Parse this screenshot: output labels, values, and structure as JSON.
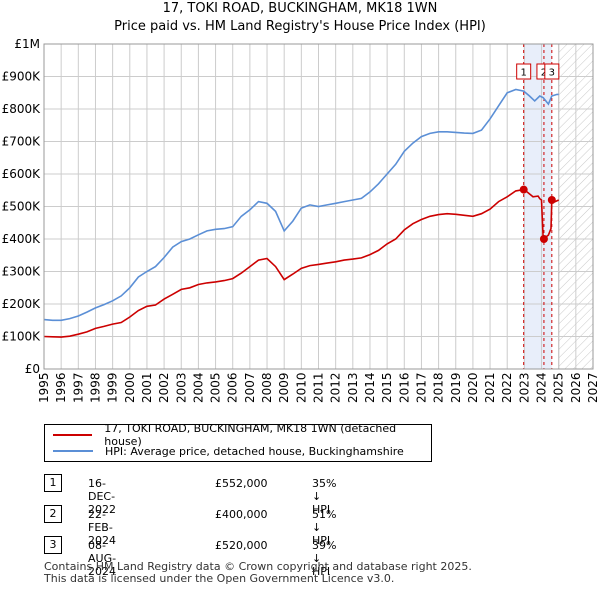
{
  "title": "17, TOKI ROAD, BUCKINGHAM, MK18 1WN",
  "subtitle": "Price paid vs. HM Land Registry's House Price Index (HPI)",
  "colors": {
    "red": "#cc0000",
    "blue": "#5b8fd6",
    "grid": "#cccccc"
  },
  "chart_data": {
    "type": "line",
    "xlim": [
      1995,
      2027
    ],
    "ylim": [
      0,
      1000000
    ],
    "x_ticks": [
      1995,
      1996,
      1997,
      1998,
      1999,
      2000,
      2001,
      2002,
      2003,
      2004,
      2005,
      2006,
      2007,
      2008,
      2009,
      2010,
      2011,
      2012,
      2013,
      2014,
      2015,
      2016,
      2017,
      2018,
      2019,
      2020,
      2021,
      2022,
      2023,
      2024,
      2025,
      2026,
      2027
    ],
    "y_ticks": [
      {
        "value": 0,
        "label": "£0"
      },
      {
        "value": 100000,
        "label": "£100K"
      },
      {
        "value": 200000,
        "label": "£200K"
      },
      {
        "value": 300000,
        "label": "£300K"
      },
      {
        "value": 400000,
        "label": "£400K"
      },
      {
        "value": 500000,
        "label": "£500K"
      },
      {
        "value": 600000,
        "label": "£600K"
      },
      {
        "value": 700000,
        "label": "£700K"
      },
      {
        "value": 800000,
        "label": "£800K"
      },
      {
        "value": 900000,
        "label": "£900K"
      },
      {
        "value": 1000000,
        "label": "£1M"
      }
    ],
    "highlight_range": [
      2022.96,
      2024.6
    ],
    "future_from": 2025.0,
    "series": [
      {
        "name": "17, TOKI ROAD, BUCKINGHAM, MK18 1WN (detached house)",
        "color": "#cc0000",
        "points": [
          [
            1995.0,
            100000
          ],
          [
            1995.5,
            99000
          ],
          [
            1996.0,
            98000
          ],
          [
            1996.5,
            101000
          ],
          [
            1997.0,
            107000
          ],
          [
            1997.5,
            114000
          ],
          [
            1998.0,
            125000
          ],
          [
            1998.5,
            131000
          ],
          [
            1999.0,
            138000
          ],
          [
            1999.5,
            143000
          ],
          [
            2000.0,
            160000
          ],
          [
            2000.5,
            180000
          ],
          [
            2001.0,
            193000
          ],
          [
            2001.5,
            197000
          ],
          [
            2002.0,
            215000
          ],
          [
            2002.5,
            230000
          ],
          [
            2003.0,
            245000
          ],
          [
            2003.5,
            250000
          ],
          [
            2004.0,
            260000
          ],
          [
            2004.5,
            265000
          ],
          [
            2005.0,
            268000
          ],
          [
            2005.5,
            272000
          ],
          [
            2006.0,
            278000
          ],
          [
            2006.5,
            295000
          ],
          [
            2007.0,
            315000
          ],
          [
            2007.5,
            335000
          ],
          [
            2008.0,
            340000
          ],
          [
            2008.5,
            315000
          ],
          [
            2009.0,
            275000
          ],
          [
            2009.5,
            292000
          ],
          [
            2010.0,
            310000
          ],
          [
            2010.5,
            318000
          ],
          [
            2011.0,
            322000
          ],
          [
            2011.5,
            326000
          ],
          [
            2012.0,
            330000
          ],
          [
            2012.5,
            335000
          ],
          [
            2013.0,
            338000
          ],
          [
            2013.5,
            342000
          ],
          [
            2014.0,
            352000
          ],
          [
            2014.5,
            365000
          ],
          [
            2015.0,
            385000
          ],
          [
            2015.5,
            400000
          ],
          [
            2016.0,
            428000
          ],
          [
            2016.5,
            447000
          ],
          [
            2017.0,
            460000
          ],
          [
            2017.5,
            470000
          ],
          [
            2018.0,
            475000
          ],
          [
            2018.5,
            478000
          ],
          [
            2019.0,
            476000
          ],
          [
            2019.5,
            473000
          ],
          [
            2020.0,
            470000
          ],
          [
            2020.5,
            478000
          ],
          [
            2021.0,
            492000
          ],
          [
            2021.5,
            515000
          ],
          [
            2022.0,
            530000
          ],
          [
            2022.5,
            548000
          ],
          [
            2022.96,
            552000
          ],
          [
            2023.2,
            543000
          ],
          [
            2023.5,
            530000
          ],
          [
            2023.8,
            532000
          ],
          [
            2023.9,
            524000
          ],
          [
            2024.0,
            520000
          ],
          [
            2024.1,
            400000
          ],
          [
            2024.4,
            412000
          ],
          [
            2024.55,
            432000
          ],
          [
            2024.6,
            520000
          ],
          [
            2024.8,
            515000
          ],
          [
            2025.0,
            520000
          ]
        ]
      },
      {
        "name": "HPI: Average price, detached house, Buckinghamshire",
        "color": "#5b8fd6",
        "points": [
          [
            1995.0,
            152000
          ],
          [
            1995.5,
            150000
          ],
          [
            1996.0,
            150000
          ],
          [
            1996.5,
            155000
          ],
          [
            1997.0,
            163000
          ],
          [
            1997.5,
            175000
          ],
          [
            1998.0,
            188000
          ],
          [
            1998.5,
            198000
          ],
          [
            1999.0,
            210000
          ],
          [
            1999.5,
            225000
          ],
          [
            2000.0,
            250000
          ],
          [
            2000.5,
            283000
          ],
          [
            2001.0,
            300000
          ],
          [
            2001.5,
            315000
          ],
          [
            2002.0,
            343000
          ],
          [
            2002.5,
            375000
          ],
          [
            2003.0,
            392000
          ],
          [
            2003.5,
            400000
          ],
          [
            2004.0,
            413000
          ],
          [
            2004.5,
            425000
          ],
          [
            2005.0,
            430000
          ],
          [
            2005.5,
            432000
          ],
          [
            2006.0,
            438000
          ],
          [
            2006.5,
            470000
          ],
          [
            2007.0,
            490000
          ],
          [
            2007.5,
            515000
          ],
          [
            2008.0,
            510000
          ],
          [
            2008.5,
            485000
          ],
          [
            2009.0,
            425000
          ],
          [
            2009.5,
            455000
          ],
          [
            2010.0,
            495000
          ],
          [
            2010.5,
            505000
          ],
          [
            2011.0,
            500000
          ],
          [
            2011.5,
            505000
          ],
          [
            2012.0,
            510000
          ],
          [
            2012.5,
            515000
          ],
          [
            2013.0,
            520000
          ],
          [
            2013.5,
            525000
          ],
          [
            2014.0,
            545000
          ],
          [
            2014.5,
            570000
          ],
          [
            2015.0,
            600000
          ],
          [
            2015.5,
            630000
          ],
          [
            2016.0,
            670000
          ],
          [
            2016.5,
            695000
          ],
          [
            2017.0,
            715000
          ],
          [
            2017.5,
            725000
          ],
          [
            2018.0,
            730000
          ],
          [
            2018.5,
            730000
          ],
          [
            2019.0,
            728000
          ],
          [
            2019.5,
            726000
          ],
          [
            2020.0,
            725000
          ],
          [
            2020.5,
            735000
          ],
          [
            2021.0,
            770000
          ],
          [
            2021.5,
            810000
          ],
          [
            2022.0,
            850000
          ],
          [
            2022.5,
            860000
          ],
          [
            2022.96,
            855000
          ],
          [
            2023.3,
            840000
          ],
          [
            2023.6,
            825000
          ],
          [
            2023.9,
            840000
          ],
          [
            2024.1,
            835000
          ],
          [
            2024.4,
            815000
          ],
          [
            2024.6,
            840000
          ],
          [
            2024.9,
            845000
          ],
          [
            2025.0,
            845000
          ]
        ]
      }
    ],
    "transactions": [
      {
        "id": "1",
        "x": 2022.96,
        "y": 552000
      },
      {
        "id": "2",
        "x": 2024.14,
        "y": 400000
      },
      {
        "id": "3",
        "x": 2024.6,
        "y": 520000
      }
    ]
  },
  "legend": {
    "red_label": "17, TOKI ROAD, BUCKINGHAM, MK18 1WN (detached house)",
    "blue_label": "HPI: Average price, detached house, Buckinghamshire"
  },
  "table": [
    {
      "id": "1",
      "date": "16-DEC-2022",
      "price": "£552,000",
      "hpi": "35% ↓ HPI"
    },
    {
      "id": "2",
      "date": "22-FEB-2024",
      "price": "£400,000",
      "hpi": "51% ↓ HPI"
    },
    {
      "id": "3",
      "date": "08-AUG-2024",
      "price": "£520,000",
      "hpi": "39% ↓ HPI"
    }
  ],
  "footer": {
    "line1": "Contains HM Land Registry data © Crown copyright and database right 2025.",
    "line2": "This data is licensed under the Open Government Licence v3.0."
  }
}
